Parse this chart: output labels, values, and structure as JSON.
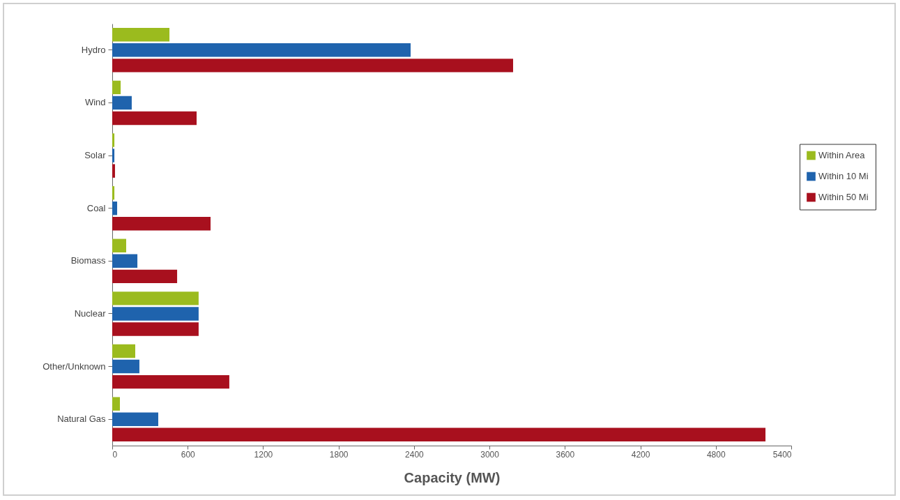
{
  "chart_data": {
    "type": "bar",
    "orientation": "horizontal",
    "xlabel": "Capacity (MW)",
    "categories": [
      "Hydro",
      "Wind",
      "Solar",
      "Coal",
      "Biomass",
      "Nuclear",
      "Other/Unknown",
      "Natural Gas"
    ],
    "series": [
      {
        "name": "Within Area",
        "color": "#9bbb1e",
        "values": [
          455,
          67,
          17,
          17,
          111,
          687,
          183,
          61
        ]
      },
      {
        "name": "Within 10 Mi",
        "color": "#1f63ad",
        "values": [
          2373,
          155,
          17,
          39,
          200,
          687,
          216,
          366
        ]
      },
      {
        "name": "Within 50 Mi",
        "color": "#a8101e",
        "values": [
          3188,
          671,
          22,
          782,
          516,
          687,
          931,
          5195
        ]
      }
    ],
    "xlim": [
      0,
      5400
    ],
    "xticks": [
      0,
      600,
      1200,
      1800,
      2400,
      3000,
      3600,
      4200,
      4800,
      5400
    ],
    "grid": false,
    "legend": "right"
  }
}
